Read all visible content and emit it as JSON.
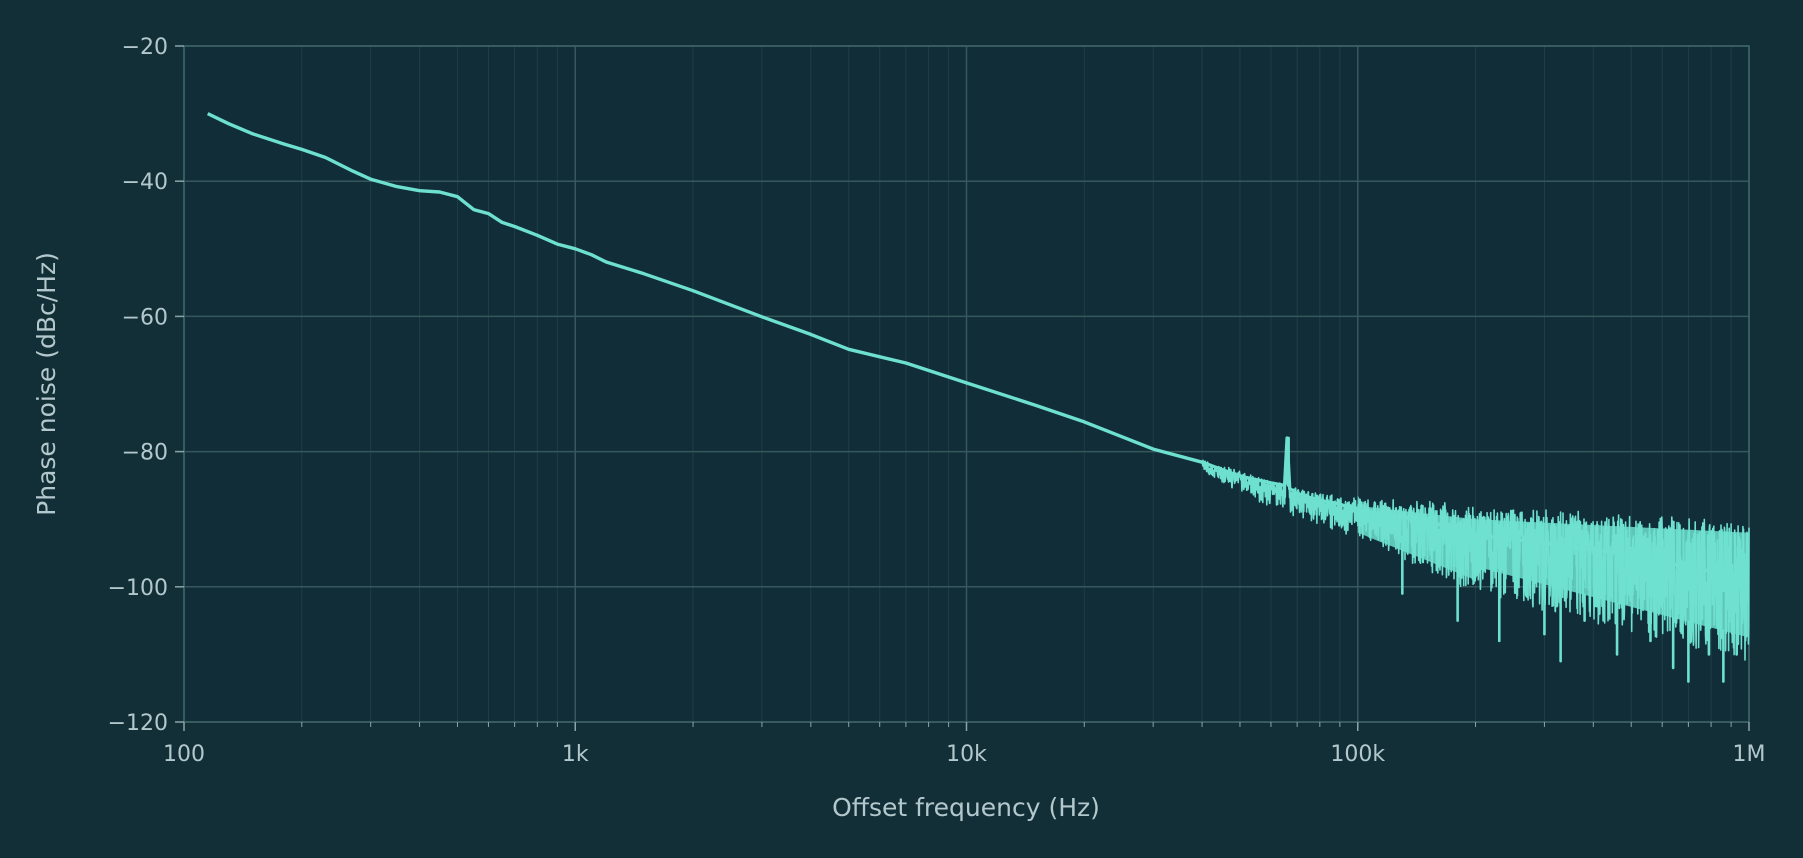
{
  "chart_data": {
    "type": "line",
    "title": "",
    "xlabel": "Offset frequency (Hz)",
    "ylabel": "Phase noise (dBc/Hz)",
    "xscale": "log",
    "xlim": [
      100,
      1000000
    ],
    "ylim": [
      -120,
      -20
    ],
    "grid": true,
    "legend": "none",
    "x_ticks": [
      100,
      1000,
      10000,
      100000,
      1000000
    ],
    "x_tick_labels": [
      "100",
      "1k",
      "10k",
      "100k",
      "1M"
    ],
    "y_ticks": [
      -20,
      -40,
      -60,
      -80,
      -100,
      -120
    ],
    "y_tick_labels": [
      "−20",
      "−40",
      "−60",
      "−80",
      "−100",
      "−120"
    ],
    "series": [
      {
        "color": "#6ee0d0",
        "x": [
          115,
          130,
          150,
          180,
          200,
          230,
          270,
          300,
          350,
          400,
          450,
          500,
          550,
          600,
          650,
          700,
          800,
          900,
          1000,
          1100,
          1200,
          1500,
          2000,
          3000,
          4000,
          5000,
          7000,
          10000,
          15000,
          20000,
          30000,
          40000,
          50000,
          60000,
          65000,
          66000,
          67000,
          68000,
          70000,
          80000,
          90000,
          100000,
          150000,
          200000,
          300000,
          500000,
          700000,
          1000000
        ],
        "y": [
          -30,
          -31.5,
          -33,
          -34.5,
          -35.3,
          -36.5,
          -38.5,
          -39.7,
          -40.8,
          -41.4,
          -41.6,
          -42.3,
          -44.2,
          -44.8,
          -46.1,
          -46.7,
          -48,
          -49.3,
          -50,
          -51,
          -51.8,
          -53.8,
          -56.6,
          -60.2,
          -62.8,
          -64.6,
          -67.2,
          -70,
          -73.4,
          -75.8,
          -79.5,
          -81.8,
          -83.4,
          -84.7,
          -85,
          -78,
          -85.5,
          -85.7,
          -86,
          -87,
          -88,
          -89,
          -90.5,
          -92,
          -93.5,
          -95.5,
          -97,
          -98.5
        ],
        "noise_floor": -95,
        "spur_hz": 66500,
        "spur_dbc": -78,
        "envelope_upper": [
          [
            100000,
            -86.5
          ],
          [
            200000,
            -88.5
          ],
          [
            1000000,
            -90.5
          ]
        ],
        "envelope_lower": [
          [
            100000,
            -93
          ],
          [
            200000,
            -100
          ],
          [
            1000000,
            -110.5
          ]
        ],
        "deep_dips": [
          [
            130000,
            -101
          ],
          [
            180000,
            -105
          ],
          [
            230000,
            -108
          ],
          [
            300000,
            -107
          ],
          [
            330000,
            -111
          ],
          [
            380000,
            -105
          ],
          [
            460000,
            -110
          ],
          [
            560000,
            -108
          ],
          [
            640000,
            -112
          ],
          [
            700000,
            -114
          ],
          [
            790000,
            -110
          ],
          [
            860000,
            -114
          ],
          [
            930000,
            -110
          ]
        ]
      }
    ]
  }
}
